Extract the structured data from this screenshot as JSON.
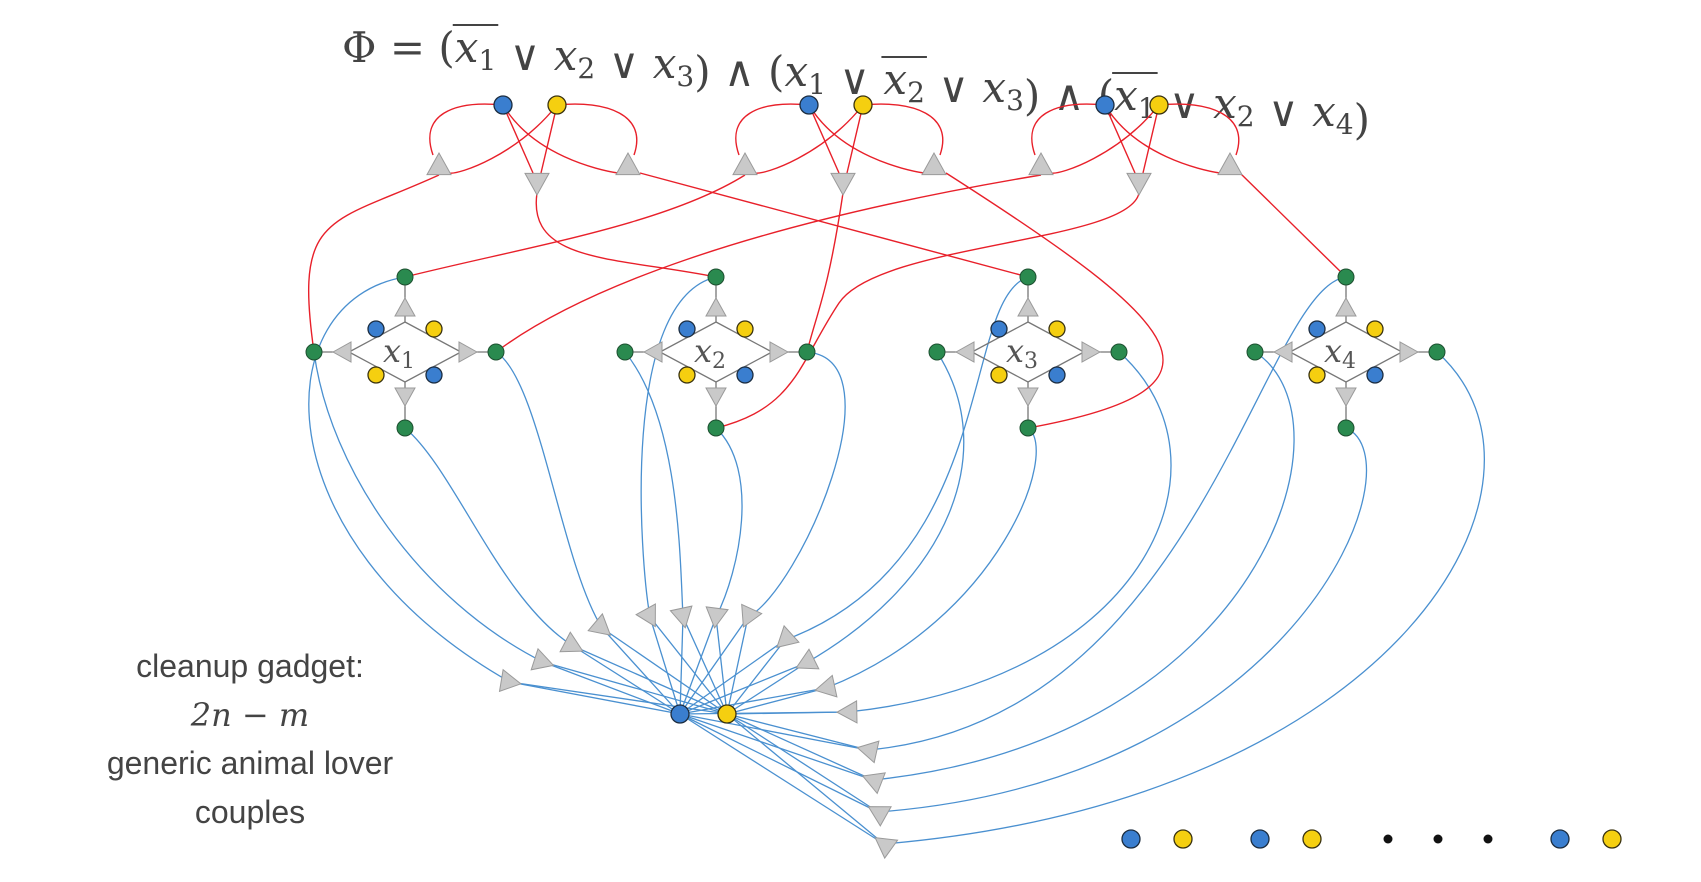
{
  "formula": {
    "lhs": "Φ",
    "equals": "=",
    "clauses": [
      [
        {
          "var": "x",
          "sub": "1",
          "neg": true
        },
        {
          "var": "x",
          "sub": "2",
          "neg": false
        },
        {
          "var": "x",
          "sub": "3",
          "neg": false
        }
      ],
      [
        {
          "var": "x",
          "sub": "1",
          "neg": false
        },
        {
          "var": "x",
          "sub": "2",
          "neg": true
        },
        {
          "var": "x",
          "sub": "3",
          "neg": false
        }
      ],
      [
        {
          "var": "x",
          "sub": "1",
          "neg": true
        },
        {
          "var": "x",
          "sub": "2",
          "neg": false
        },
        {
          "var": "x",
          "sub": "4",
          "neg": false
        }
      ]
    ],
    "or_symbol": "∨",
    "and_symbol": "∧"
  },
  "gadgets": [
    {
      "var": "x",
      "sub": "1"
    },
    {
      "var": "x",
      "sub": "2"
    },
    {
      "var": "x",
      "sub": "3"
    },
    {
      "var": "x",
      "sub": "4"
    }
  ],
  "caption": {
    "line1": "cleanup gadget:",
    "line2": "2n − m",
    "line3": "generic animal lover",
    "line4": "couples"
  },
  "colors": {
    "clause_edge": "#e8202a",
    "cleanup_edge": "#4a90d0",
    "blue_node": "#3a7ecf",
    "yellow_node": "#f5cf10",
    "green_node": "#2a8a4f",
    "triangle": "#c9c9c9"
  }
}
